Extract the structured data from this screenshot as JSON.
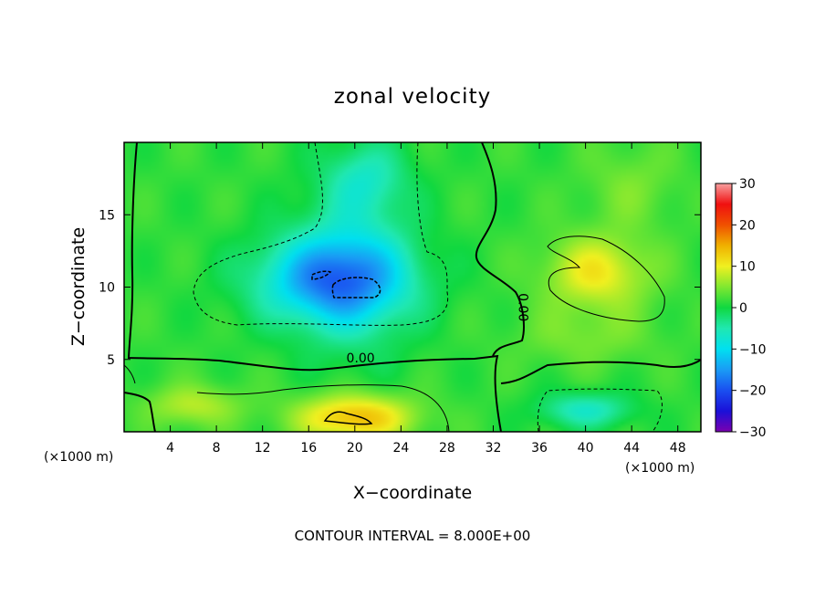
{
  "chart_data": {
    "type": "heatmap",
    "title": "zonal velocity",
    "xlabel": "X−coordinate",
    "ylabel": "Z−coordinate",
    "x_unit_label": "(×1000 m)",
    "z_unit_label": "(×1000 m)",
    "footnote": "CONTOUR INTERVAL = 8.000E+00",
    "xlim": [
      0,
      50
    ],
    "ylim": [
      0,
      20
    ],
    "x_ticks": [
      4,
      8,
      12,
      16,
      20,
      24,
      28,
      32,
      36,
      40,
      44,
      48
    ],
    "y_ticks": [
      5,
      10,
      15
    ],
    "colorbar": {
      "range": [
        -30,
        30
      ],
      "ticks": [
        30,
        20,
        10,
        0,
        -10,
        -20,
        -30
      ],
      "stops": [
        {
          "v": -30,
          "color": "#7a00b0"
        },
        {
          "v": -25,
          "color": "#1a10d8"
        },
        {
          "v": -20,
          "color": "#1a4ff0"
        },
        {
          "v": -15,
          "color": "#1a9bf5"
        },
        {
          "v": -10,
          "color": "#00e0f0"
        },
        {
          "v": -5,
          "color": "#20e8b0"
        },
        {
          "v": 0,
          "color": "#10d840"
        },
        {
          "v": 5,
          "color": "#80e830"
        },
        {
          "v": 10,
          "color": "#f0f020"
        },
        {
          "v": 15,
          "color": "#f0b000"
        },
        {
          "v": 20,
          "color": "#f05000"
        },
        {
          "v": 25,
          "color": "#f01010"
        },
        {
          "v": 30,
          "color": "#f8a0a0"
        }
      ]
    },
    "field_features": [
      {
        "x": 18,
        "z": 10.5,
        "sx": 6.5,
        "sz": 3.0,
        "amp": -16
      },
      {
        "x": 20,
        "z": 11.5,
        "sx": 5.0,
        "sz": 6.5,
        "amp": -6
      },
      {
        "x": 21,
        "z": 17.5,
        "sx": 3.5,
        "sz": 2.5,
        "amp": -6
      },
      {
        "x": 20,
        "z": 1.0,
        "sx": 5.0,
        "sz": 1.6,
        "amp": 13
      },
      {
        "x": 41,
        "z": 11.0,
        "sx": 4.5,
        "sz": 2.5,
        "amp": 9
      },
      {
        "x": 40,
        "z": 1.5,
        "sx": 4.0,
        "sz": 1.2,
        "amp": -8
      },
      {
        "x": 6,
        "z": 1.8,
        "sx": 4.0,
        "sz": 1.4,
        "amp": 6
      },
      {
        "x": 44,
        "z": 17,
        "sx": 4.0,
        "sz": 3.0,
        "amp": 3
      },
      {
        "x": 40,
        "z": 6.5,
        "sx": 6.0,
        "sz": 2.0,
        "amp": 3
      }
    ],
    "contour_labels": [
      {
        "text": "0.00",
        "x": 20.5,
        "z": 4.8,
        "rotate": 0
      },
      {
        "text": "0.00",
        "x": 34.2,
        "z": 8.6,
        "rotate": 90
      }
    ],
    "grid": false
  }
}
